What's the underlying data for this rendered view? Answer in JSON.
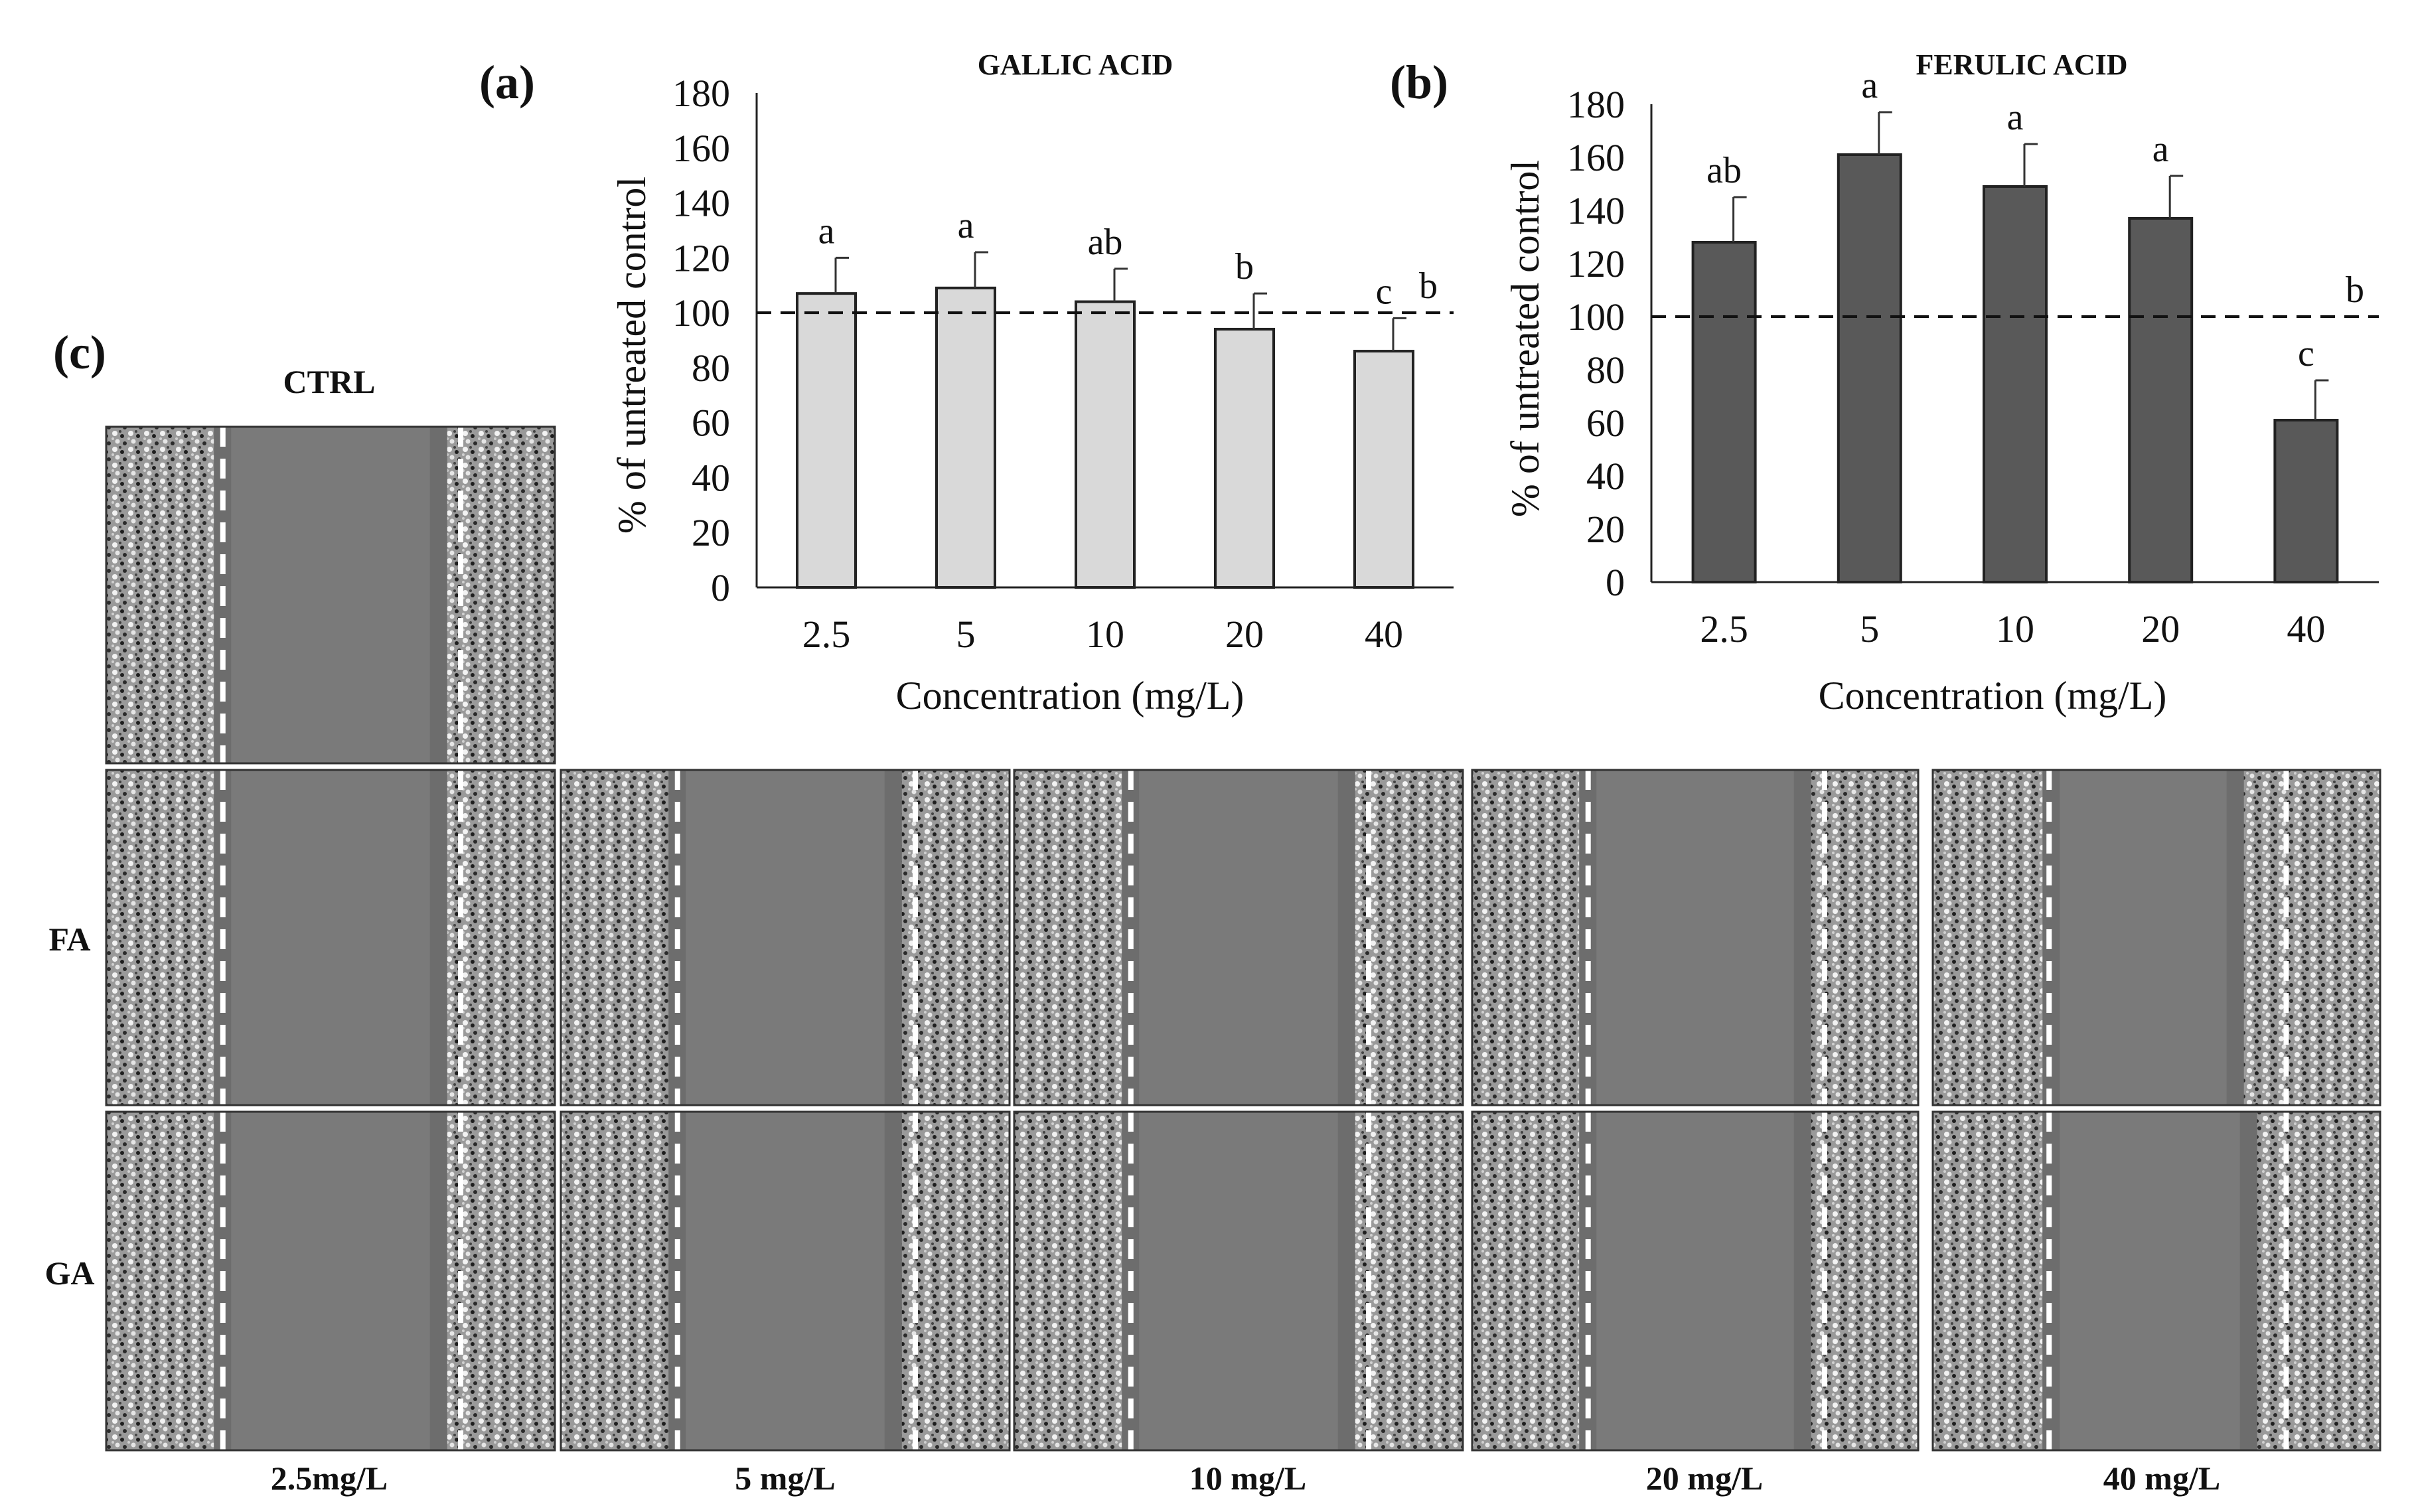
{
  "figure": {
    "panel_a_label": "(a)",
    "panel_b_label": "(b)",
    "panel_c_label": "(c)"
  },
  "chart_data": [
    {
      "type": "bar",
      "title": "GALLIC ACID",
      "xlabel": "Concentration (mg/L)",
      "ylabel": "% of untreated control",
      "categories": [
        "2.5",
        "5",
        "10",
        "20",
        "40"
      ],
      "values": [
        107,
        109,
        104,
        94,
        86
      ],
      "errors": [
        13,
        13,
        12,
        13,
        12
      ],
      "significance": [
        "a",
        "a",
        "ab",
        "b",
        "c"
      ],
      "control_value": 100,
      "control_label": "b",
      "ylim": [
        0,
        180
      ],
      "yticks": [
        "0",
        "20",
        "40",
        "60",
        "80",
        "100",
        "120",
        "140",
        "160",
        "180"
      ],
      "bar_color": "#d9d9d9"
    },
    {
      "type": "bar",
      "title": "FERULIC ACID",
      "xlabel": "Concentration (mg/L)",
      "ylabel": "% of untreated control",
      "categories": [
        "2.5",
        "5",
        "10",
        "20",
        "40"
      ],
      "values": [
        128,
        161,
        149,
        137,
        61
      ],
      "errors": [
        17,
        16,
        16,
        16,
        15
      ],
      "significance": [
        "ab",
        "a",
        "a",
        "a",
        "c"
      ],
      "control_value": 100,
      "control_label": "b",
      "ylim": [
        0,
        180
      ],
      "yticks": [
        "0",
        "20",
        "40",
        "60",
        "80",
        "100",
        "120",
        "140",
        "160",
        "180"
      ],
      "bar_color": "#595959"
    }
  ],
  "microscopy": {
    "ctrl_label": "CTRL",
    "rows": [
      "FA",
      "GA"
    ],
    "columns": [
      "2.5mg/L",
      "5 mg/L",
      "10 mg/L",
      "20 mg/L",
      "40 mg/L"
    ],
    "gap_fraction": {
      "ctrl": 0.52,
      "FA": [
        0.52,
        0.52,
        0.52,
        0.52,
        0.45
      ],
      "GA": [
        0.52,
        0.52,
        0.52,
        0.52,
        0.48
      ]
    }
  }
}
